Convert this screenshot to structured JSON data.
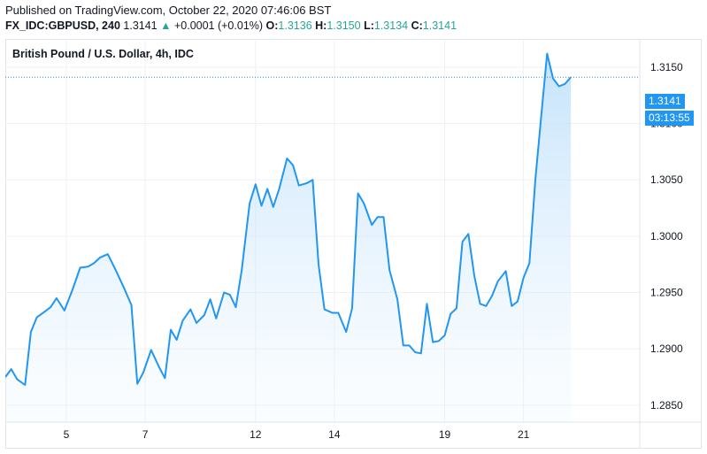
{
  "header": {
    "published": "Published on TradingView.com, October 22, 2020 07:46:06 BST",
    "symbol": "FX_IDC:GBPUSD, 240",
    "last": "1.3141",
    "arrow": "▲",
    "change": "+0.0001 (+0.01%)",
    "o_label": "O:",
    "o_value": "1.3136",
    "h_label": "H:",
    "h_value": "1.3150",
    "l_label": "L:",
    "l_value": "1.3134",
    "c_label": "C:",
    "c_value": "1.3141"
  },
  "price_tag": {
    "value": "1.3141",
    "countdown": "03:13:55"
  },
  "colors": {
    "line": "#2196f3",
    "fill_top": "#bbdefb",
    "up": "#26a69a",
    "grid": "#eef0f4",
    "frame": "#e0e3eb"
  },
  "chart_data": {
    "type": "area",
    "title": "British Pound / U.S. Dollar, 4h, IDC",
    "x_ticks": [
      "5",
      "7",
      "12",
      "14",
      "19",
      "21"
    ],
    "y_ticks": [
      1.285,
      1.29,
      1.295,
      1.3,
      1.305,
      1.31,
      1.315
    ],
    "y_tick_labels": [
      "1.2850",
      "1.2900",
      "1.2950",
      "1.3000",
      "1.3050",
      "1.3100",
      "1.3150"
    ],
    "ylim": [
      1.2835,
      1.3175
    ],
    "grid": true,
    "x_tick_index": [
      15.5,
      35.5,
      63.5,
      83.5,
      111.5,
      131.5
    ],
    "index_range": [
      0,
      161
    ],
    "series": [
      {
        "values": [
          {
            "i": 0,
            "y": 1.2875
          },
          {
            "i": 1.5,
            "y": 1.2882
          },
          {
            "i": 3,
            "y": 1.2873
          },
          {
            "i": 5,
            "y": 1.2868
          },
          {
            "i": 6.5,
            "y": 1.2915
          },
          {
            "i": 8,
            "y": 1.2928
          },
          {
            "i": 10,
            "y": 1.2933
          },
          {
            "i": 11.5,
            "y": 1.2937
          },
          {
            "i": 13,
            "y": 1.2945
          },
          {
            "i": 15,
            "y": 1.2934
          },
          {
            "i": 17,
            "y": 1.2952
          },
          {
            "i": 19,
            "y": 1.2972
          },
          {
            "i": 21,
            "y": 1.2973
          },
          {
            "i": 22.5,
            "y": 1.2976
          },
          {
            "i": 24,
            "y": 1.2981
          },
          {
            "i": 26,
            "y": 1.2984
          },
          {
            "i": 28,
            "y": 1.297
          },
          {
            "i": 30,
            "y": 1.2955
          },
          {
            "i": 32,
            "y": 1.2939
          },
          {
            "i": 33.5,
            "y": 1.2869
          },
          {
            "i": 35,
            "y": 1.2879
          },
          {
            "i": 37,
            "y": 1.2899
          },
          {
            "i": 39,
            "y": 1.2884
          },
          {
            "i": 40.5,
            "y": 1.2874
          },
          {
            "i": 42,
            "y": 1.2917
          },
          {
            "i": 43.5,
            "y": 1.2908
          },
          {
            "i": 45,
            "y": 1.2925
          },
          {
            "i": 47,
            "y": 1.2935
          },
          {
            "i": 48.5,
            "y": 1.2923
          },
          {
            "i": 50.5,
            "y": 1.293
          },
          {
            "i": 52,
            "y": 1.2944
          },
          {
            "i": 53.5,
            "y": 1.2927
          },
          {
            "i": 55.5,
            "y": 1.295
          },
          {
            "i": 57,
            "y": 1.2948
          },
          {
            "i": 58.5,
            "y": 1.2937
          },
          {
            "i": 60,
            "y": 1.297
          },
          {
            "i": 62,
            "y": 1.3029
          },
          {
            "i": 63.5,
            "y": 1.3046
          },
          {
            "i": 65,
            "y": 1.3027
          },
          {
            "i": 66.5,
            "y": 1.3042
          },
          {
            "i": 68,
            "y": 1.3026
          },
          {
            "i": 69.5,
            "y": 1.3042
          },
          {
            "i": 71.5,
            "y": 1.3069
          },
          {
            "i": 73,
            "y": 1.3063
          },
          {
            "i": 74.5,
            "y": 1.3045
          },
          {
            "i": 76.5,
            "y": 1.3047
          },
          {
            "i": 78,
            "y": 1.305
          },
          {
            "i": 79.5,
            "y": 1.2975
          },
          {
            "i": 81,
            "y": 1.2935
          },
          {
            "i": 83,
            "y": 1.2932
          },
          {
            "i": 84.5,
            "y": 1.2932
          },
          {
            "i": 86.5,
            "y": 1.2915
          },
          {
            "i": 88,
            "y": 1.2936
          },
          {
            "i": 89.5,
            "y": 1.3038
          },
          {
            "i": 91,
            "y": 1.3029
          },
          {
            "i": 93,
            "y": 1.301
          },
          {
            "i": 94.5,
            "y": 1.3017
          },
          {
            "i": 96,
            "y": 1.3017
          },
          {
            "i": 97.5,
            "y": 1.297
          },
          {
            "i": 99.5,
            "y": 1.2944
          },
          {
            "i": 101,
            "y": 1.2903
          },
          {
            "i": 102.5,
            "y": 1.2903
          },
          {
            "i": 104,
            "y": 1.2897
          },
          {
            "i": 105.5,
            "y": 1.2896
          },
          {
            "i": 107,
            "y": 1.294
          },
          {
            "i": 108.5,
            "y": 1.2906
          },
          {
            "i": 110,
            "y": 1.2907
          },
          {
            "i": 111.5,
            "y": 1.2912
          },
          {
            "i": 113,
            "y": 1.2931
          },
          {
            "i": 114.5,
            "y": 1.2936
          },
          {
            "i": 116,
            "y": 1.2995
          },
          {
            "i": 117.5,
            "y": 1.3002
          },
          {
            "i": 119,
            "y": 1.2965
          },
          {
            "i": 120.5,
            "y": 1.294
          },
          {
            "i": 122,
            "y": 1.2938
          },
          {
            "i": 123.5,
            "y": 1.2947
          },
          {
            "i": 125,
            "y": 1.296
          },
          {
            "i": 127,
            "y": 1.2969
          },
          {
            "i": 128.5,
            "y": 1.2938
          },
          {
            "i": 130,
            "y": 1.2942
          },
          {
            "i": 131.5,
            "y": 1.2963
          },
          {
            "i": 133,
            "y": 1.2976
          },
          {
            "i": 134.5,
            "y": 1.305
          },
          {
            "i": 136,
            "y": 1.3107
          },
          {
            "i": 137.5,
            "y": 1.3162
          },
          {
            "i": 139,
            "y": 1.314
          },
          {
            "i": 140.5,
            "y": 1.3133
          },
          {
            "i": 142,
            "y": 1.3135
          },
          {
            "i": 143.5,
            "y": 1.3141
          }
        ]
      }
    ]
  }
}
